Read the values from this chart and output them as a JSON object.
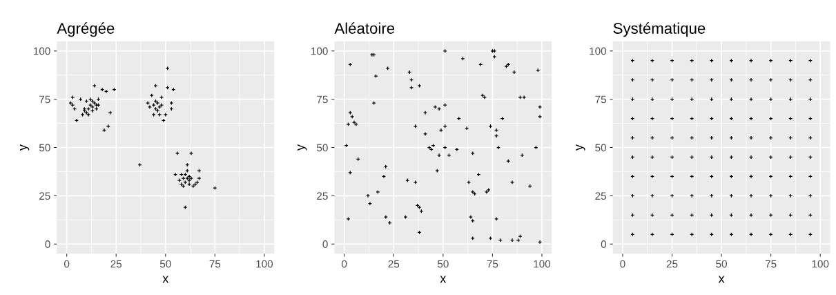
{
  "chart_data": [
    {
      "type": "scatter",
      "title": "Agrégée",
      "xlabel": "x",
      "ylabel": "y",
      "xlim": [
        -5,
        105
      ],
      "ylim": [
        -5,
        105
      ],
      "xticks": [
        0,
        25,
        50,
        75,
        100
      ],
      "yticks": [
        0,
        25,
        50,
        75,
        100
      ],
      "grid": true,
      "marker": "cross",
      "series": [
        {
          "color": "#000000",
          "x": [
            3,
            3,
            4,
            5,
            2,
            7,
            9,
            10,
            11,
            12,
            13,
            14,
            14,
            15,
            15,
            13,
            12,
            16,
            18,
            19,
            20,
            21,
            22,
            24,
            11,
            9,
            16,
            13,
            10,
            8,
            41,
            42,
            43,
            45,
            44,
            45,
            46,
            47,
            46,
            48,
            44,
            47,
            48,
            49,
            51,
            51,
            53,
            54,
            53,
            50,
            45,
            37,
            56,
            58,
            55,
            57,
            58,
            59,
            60,
            60,
            61,
            61,
            62,
            62,
            63,
            63,
            64,
            65,
            66,
            67,
            67,
            75,
            60,
            59,
            61,
            62
          ],
          "values": [
            76,
            72,
            70,
            64,
            73,
            75,
            70,
            74,
            67,
            75,
            71,
            73,
            82,
            70,
            72,
            69,
            72,
            75,
            80,
            59,
            79,
            61,
            68,
            80,
            70,
            69,
            72,
            74,
            68,
            67,
            73,
            71,
            77,
            82,
            72,
            74,
            73,
            71,
            69,
            72,
            67,
            67,
            76,
            64,
            81,
            91,
            70,
            80,
            73,
            67,
            70,
            41,
            47,
            36,
            36,
            33,
            31,
            34,
            32,
            36,
            38,
            41,
            33,
            31,
            34,
            47,
            30,
            31,
            32,
            34,
            38,
            29,
            19,
            30,
            34,
            35
          ]
        }
      ]
    },
    {
      "type": "scatter",
      "title": "Aléatoire",
      "xlabel": "x",
      "ylabel": "y",
      "xlim": [
        -5,
        105
      ],
      "ylim": [
        -5,
        105
      ],
      "xticks": [
        0,
        25,
        50,
        75,
        100
      ],
      "yticks": [
        0,
        25,
        50,
        75,
        100
      ],
      "grid": true,
      "marker": "cross",
      "series": [
        {
          "color": "#000000",
          "x": [
            1,
            2,
            2,
            3,
            3,
            3,
            4,
            5,
            6,
            7,
            12,
            13,
            14,
            15,
            15,
            16,
            17,
            20,
            21,
            21,
            22,
            23,
            31,
            32,
            33,
            34,
            34,
            36,
            36,
            37,
            38,
            38,
            38,
            39,
            41,
            41,
            43,
            44,
            45,
            46,
            47,
            48,
            48,
            49,
            51,
            51,
            51,
            51,
            53,
            57,
            58,
            60,
            62,
            63,
            64,
            65,
            65,
            65,
            65,
            66,
            68,
            69,
            70,
            71,
            72,
            73,
            74,
            74,
            75,
            76,
            76,
            77,
            77,
            77,
            78,
            79,
            80,
            82,
            83,
            83,
            85,
            85,
            86,
            88,
            89,
            89,
            90,
            91,
            94,
            97,
            98,
            99,
            99,
            99
          ],
          "values": [
            51,
            62,
            13,
            37,
            93,
            68,
            66,
            63,
            62,
            44,
            25,
            21,
            98,
            98,
            73,
            87,
            27,
            35,
            40,
            14,
            91,
            11,
            14,
            33,
            89,
            85,
            81,
            61,
            32,
            20,
            19,
            82,
            6,
            17,
            68,
            57,
            50,
            49,
            51,
            71,
            38,
            46,
            70,
            59,
            100,
            72,
            61,
            50,
            46,
            49,
            65,
            96,
            60,
            32,
            14,
            12,
            3,
            47,
            27,
            26,
            36,
            93,
            77,
            76,
            27,
            28,
            61,
            3,
            100,
            100,
            97,
            56,
            59,
            13,
            50,
            2,
            65,
            92,
            93,
            43,
            32,
            2,
            89,
            2,
            4,
            76,
            46,
            76,
            30,
            50,
            90,
            71,
            66,
            1
          ]
        }
      ]
    },
    {
      "type": "scatter",
      "title": "Systématique",
      "xlabel": "x",
      "ylabel": "y",
      "xlim": [
        -5,
        105
      ],
      "ylim": [
        -5,
        105
      ],
      "xticks": [
        0,
        25,
        50,
        75,
        100
      ],
      "yticks": [
        0,
        25,
        50,
        75,
        100
      ],
      "grid": true,
      "marker": "cross",
      "series": [
        {
          "color": "#000000",
          "x": [
            5,
            5,
            5,
            5,
            5,
            5,
            5,
            5,
            5,
            5,
            15,
            15,
            15,
            15,
            15,
            15,
            15,
            15,
            15,
            15,
            25,
            25,
            25,
            25,
            25,
            25,
            25,
            25,
            25,
            25,
            35,
            35,
            35,
            35,
            35,
            35,
            35,
            35,
            35,
            35,
            45,
            45,
            45,
            45,
            45,
            45,
            45,
            45,
            45,
            45,
            55,
            55,
            55,
            55,
            55,
            55,
            55,
            55,
            55,
            55,
            65,
            65,
            65,
            65,
            65,
            65,
            65,
            65,
            65,
            65,
            75,
            75,
            75,
            75,
            75,
            75,
            75,
            75,
            75,
            75,
            85,
            85,
            85,
            85,
            85,
            85,
            85,
            85,
            85,
            85,
            95,
            95,
            95,
            95,
            95,
            95,
            95,
            95,
            95,
            95
          ],
          "values": [
            5,
            15,
            25,
            35,
            45,
            55,
            65,
            75,
            85,
            95,
            5,
            15,
            25,
            35,
            45,
            55,
            65,
            75,
            85,
            95,
            5,
            15,
            25,
            35,
            45,
            55,
            65,
            75,
            85,
            95,
            5,
            15,
            25,
            35,
            45,
            55,
            65,
            75,
            85,
            95,
            5,
            15,
            25,
            35,
            45,
            55,
            65,
            75,
            85,
            95,
            5,
            15,
            25,
            35,
            45,
            55,
            65,
            75,
            85,
            95,
            5,
            15,
            25,
            35,
            45,
            55,
            65,
            75,
            85,
            95,
            5,
            15,
            25,
            35,
            45,
            55,
            65,
            75,
            85,
            95,
            5,
            15,
            25,
            35,
            45,
            55,
            65,
            75,
            85,
            95,
            5,
            15,
            25,
            35,
            45,
            55,
            65,
            75,
            85,
            95
          ]
        }
      ]
    }
  ]
}
